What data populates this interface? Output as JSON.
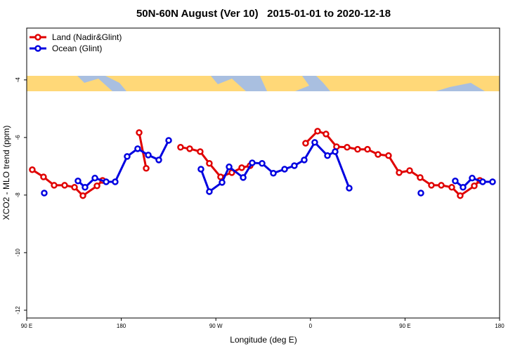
{
  "chart_data": {
    "type": "line",
    "title": "50N-60N August (Ver 10)   2015-01-01 to 2020-12-18",
    "xlabel": "Longitude (deg E)",
    "ylabel": "XCO2 - MLO trend (ppm)",
    "xlim": [
      90,
      540
    ],
    "xticks": [
      {
        "value": 90,
        "label": "90 E"
      },
      180,
      {
        "value": 270,
        "label": "90 W"
      },
      {
        "value": 360,
        "label": "0"
      },
      {
        "value": 450,
        "label": "90 E"
      },
      {
        "value": 540,
        "label": "180"
      }
    ],
    "ylim": [
      -12.27,
      -2.2
    ],
    "yticks": [
      -4,
      -6,
      -8,
      -10,
      -12
    ],
    "legend": "upper left",
    "series": [
      {
        "name": "Land (Nadir&Glint)",
        "color": "#e00000",
        "x": [
          95.3,
          106.0,
          116.1,
          126.1,
          135.5,
          143.5,
          156.9,
          162.2,
          null,
          197.0,
          203.7,
          null,
          236.4,
          245.1,
          255.1,
          263.8,
          274.5,
          285.2,
          294.6,
          302.6,
          null,
          355.4,
          366.8,
          374.8,
          384.8,
          394.9,
          404.9,
          414.3,
          424.3,
          434.3,
          444.4,
          454.4,
          464.4,
          475.1,
          484.5,
          494.5,
          502.5,
          515.9,
          521.2
        ],
        "values": [
          -7.12,
          -7.37,
          -7.66,
          -7.66,
          -7.73,
          -8.02,
          -7.68,
          -7.49,
          null,
          -5.83,
          -7.07,
          null,
          -6.34,
          -6.39,
          -6.49,
          -6.9,
          -7.37,
          -7.22,
          -7.05,
          -6.98,
          null,
          -6.2,
          -5.78,
          -5.88,
          -6.32,
          -6.34,
          -6.41,
          -6.41,
          -6.59,
          -6.63,
          -7.22,
          -7.15,
          -7.39,
          -7.66,
          -7.66,
          -7.73,
          -8.02,
          -7.68,
          -7.49
        ]
      },
      {
        "name": "Ocean (Glint)",
        "color": "#0000e0",
        "x": [
          106.7,
          null,
          138.8,
          145.5,
          154.9,
          165.6,
          174.2,
          185.6,
          195.6,
          205.7,
          215.7,
          225.1,
          null,
          255.8,
          263.8,
          275.9,
          282.6,
          296.0,
          304.6,
          314.0,
          324.7,
          335.4,
          344.7,
          354.1,
          364.1,
          376.2,
          383.5,
          396.9,
          null,
          465.1,
          null,
          497.8,
          505.2,
          513.9,
          523.9,
          533.3
        ],
        "values": [
          -7.93,
          null,
          -7.51,
          -7.73,
          -7.41,
          -7.54,
          -7.54,
          -6.66,
          -6.39,
          -6.61,
          -6.78,
          -6.1,
          null,
          -7.1,
          -7.88,
          -7.56,
          -7.02,
          -7.39,
          -6.88,
          -6.9,
          -7.24,
          -7.1,
          -6.98,
          -6.78,
          -6.17,
          -6.63,
          -6.49,
          -7.76,
          null,
          -7.93,
          null,
          -7.51,
          -7.73,
          -7.41,
          -7.54,
          -7.54
        ]
      }
    ]
  }
}
